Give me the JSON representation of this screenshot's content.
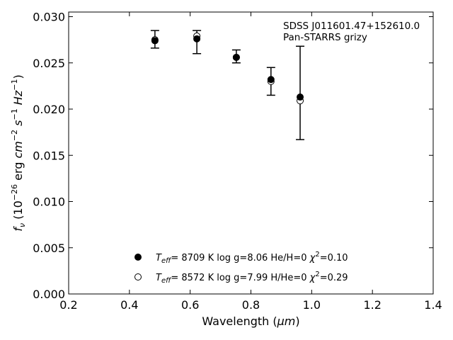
{
  "chart_data": {
    "type": "scatter",
    "xlabel_main": "Wavelength (",
    "xlabel_unit": "μm",
    "xlabel_close": ")",
    "ylabel_f": "f",
    "ylabel_sub": "ν",
    "ylabel_p1": " (10",
    "ylabel_exp1": "−26",
    "ylabel_p2": " erg ",
    "ylabel_cm": "cm",
    "ylabel_exp2": "−2",
    "ylabel_s": "s",
    "ylabel_exp3": "−1",
    "ylabel_hz": "Hz",
    "ylabel_exp4": "−1",
    "ylabel_close": ")",
    "xlim": [
      0.2,
      1.4
    ],
    "ylim": [
      0.0,
      0.0305
    ],
    "xticks": [
      "0.2",
      "0.4",
      "0.6",
      "0.8",
      "1.0",
      "1.2",
      "1.4"
    ],
    "yticks": [
      "0.000",
      "0.005",
      "0.010",
      "0.015",
      "0.020",
      "0.025",
      "0.030"
    ],
    "annotation": [
      "SDSS J011601.47+152610.0",
      "Pan-STARRS grizy"
    ],
    "observed": {
      "x": [
        0.484,
        0.622,
        0.752,
        0.866,
        0.962
      ],
      "y": [
        0.0275,
        0.0275,
        0.0257,
        0.023,
        0.0218
      ],
      "yerr_low": [
        0.0266,
        0.026,
        0.025,
        0.0215,
        0.0167
      ],
      "yerr_high": [
        0.0285,
        0.0285,
        0.0264,
        0.0245,
        0.0268
      ]
    },
    "legend_location": "lower-center",
    "series": [
      {
        "marker": "filled-circle",
        "label_T": "T",
        "label_eff": "eff",
        "label_rest": "=  8709 K  log g=8.06  He/H=0  ",
        "label_chi": "χ",
        "label_sq": "2",
        "label_chi_val": "=0.10",
        "x": [
          0.484,
          0.622,
          0.752,
          0.866,
          0.962
        ],
        "y": [
          0.0274,
          0.0276,
          0.0256,
          0.0232,
          0.0213
        ]
      },
      {
        "marker": "open-circle",
        "label_T": "T",
        "label_eff": "eff",
        "label_rest": "=  8572 K  log g=7.99  H/He=0  ",
        "label_chi": "χ",
        "label_sq": "2",
        "label_chi_val": "=0.29",
        "x": [
          0.484,
          0.622,
          0.752,
          0.866,
          0.962
        ],
        "y": [
          0.0275,
          0.0279,
          0.0256,
          0.023,
          0.0209
        ]
      }
    ]
  }
}
